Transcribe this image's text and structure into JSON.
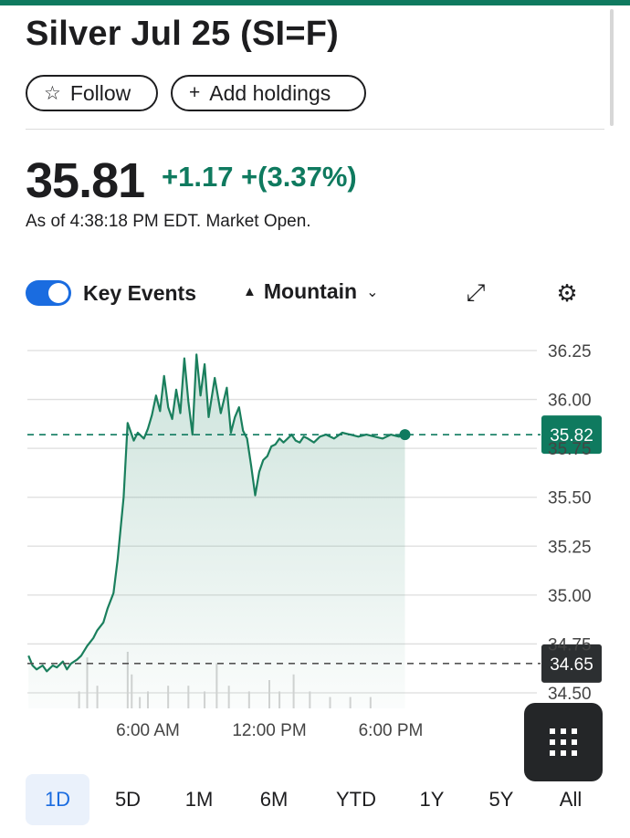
{
  "header": {
    "title": "Silver Jul 25 (SI=F)",
    "follow_label": "Follow",
    "follow_icon": "☆",
    "add_holdings_label": "Add holdings",
    "add_icon": "+"
  },
  "quote": {
    "price": "35.81",
    "change": "+1.17 +(3.37%)",
    "as_of": "As of 4:38:18 PM EDT. Market Open."
  },
  "controls": {
    "key_events_label": "Key Events",
    "key_events_on": true,
    "chart_type_label": "Mountain",
    "chart_type_icon": "▲",
    "chevron": "⌄",
    "expand_icon": "⤢",
    "settings_icon": "⚙"
  },
  "chart_data": {
    "type": "area",
    "title": "",
    "xlabel": "",
    "ylabel": "",
    "ylim": [
      34.45,
      36.35
    ],
    "y_ticks": [
      "36.25",
      "36.00",
      "35.75",
      "35.50",
      "35.25",
      "35.00",
      "34.75",
      "34.50"
    ],
    "x_ticks": [
      "6:00 AM",
      "12:00 PM",
      "6:00 PM"
    ],
    "x_tick_hours": [
      6,
      12,
      18
    ],
    "x_range_hours": [
      0,
      24
    ],
    "current_price_tag": "35.82",
    "current_price": 35.82,
    "previous_close_tag": "34.65",
    "previous_close": 34.65,
    "colors": {
      "line": "#1a7f5d",
      "current_tag": "#0f7a5f",
      "prev_tag": "#2c2f31"
    },
    "series": [
      {
        "name": "SI=F",
        "x": [
          0.1,
          0.3,
          0.5,
          0.8,
          1.0,
          1.3,
          1.5,
          1.8,
          2.0,
          2.2,
          2.5,
          2.7,
          3.0,
          3.3,
          3.5,
          3.8,
          4.0,
          4.3,
          4.5,
          4.8,
          5.0,
          5.3,
          5.5,
          5.8,
          6.0,
          6.2,
          6.4,
          6.6,
          6.8,
          7.0,
          7.2,
          7.4,
          7.6,
          7.8,
          8.0,
          8.2,
          8.4,
          8.6,
          8.8,
          9.0,
          9.3,
          9.6,
          9.9,
          10.1,
          10.3,
          10.5,
          10.7,
          10.9,
          11.1,
          11.3,
          11.5,
          11.7,
          11.9,
          12.1,
          12.3,
          12.5,
          12.7,
          12.9,
          13.1,
          13.3,
          13.5,
          13.7,
          13.9,
          14.2,
          14.5,
          14.8,
          15.2,
          15.6,
          16.0,
          16.4,
          16.8,
          17.2,
          17.6,
          18.0,
          18.4,
          18.7
        ],
        "values": [
          34.69,
          34.64,
          34.62,
          34.64,
          34.61,
          34.64,
          34.63,
          34.66,
          34.62,
          34.65,
          34.67,
          34.69,
          34.74,
          34.78,
          34.82,
          34.86,
          34.93,
          35.01,
          35.18,
          35.5,
          35.88,
          35.79,
          35.83,
          35.8,
          35.85,
          35.92,
          36.02,
          35.94,
          36.12,
          35.96,
          35.9,
          36.05,
          35.93,
          36.21,
          35.99,
          35.82,
          36.23,
          36.02,
          36.18,
          35.91,
          36.11,
          35.93,
          36.06,
          35.83,
          35.91,
          35.96,
          35.84,
          35.8,
          35.66,
          35.51,
          35.63,
          35.69,
          35.71,
          35.76,
          35.77,
          35.8,
          35.78,
          35.8,
          35.82,
          35.79,
          35.78,
          35.81,
          35.8,
          35.78,
          35.81,
          35.82,
          35.8,
          35.83,
          35.82,
          35.81,
          35.82,
          35.81,
          35.8,
          35.82,
          35.81,
          35.82
        ]
      },
      {
        "name": "Volume",
        "x": [
          2.6,
          3.0,
          3.5,
          5.0,
          5.2,
          5.6,
          6.0,
          7.0,
          8.0,
          8.8,
          9.4,
          10.0,
          11.0,
          12.0,
          12.5,
          13.2,
          14.0,
          15.0,
          16.0,
          17.0
        ],
        "values": [
          0.3,
          0.9,
          0.4,
          1.0,
          0.6,
          0.2,
          0.3,
          0.4,
          0.4,
          0.3,
          0.8,
          0.4,
          0.3,
          0.5,
          0.3,
          0.6,
          0.3,
          0.2,
          0.2,
          0.2
        ]
      }
    ]
  },
  "ranges": [
    "1D",
    "5D",
    "1M",
    "6M",
    "YTD",
    "1Y",
    "5Y",
    "All"
  ],
  "active_range": "1D"
}
